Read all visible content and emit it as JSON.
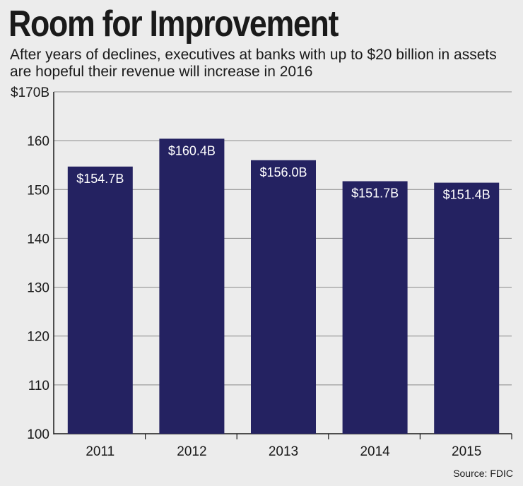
{
  "header": {
    "title": "Room for Improvement",
    "subtitle": "After years of declines, executives at banks with up to $20 billion in assets are hopeful their revenue will increase in 2016"
  },
  "footer": {
    "source": "Source: FDIC"
  },
  "chart_data": {
    "type": "bar",
    "categories": [
      "2011",
      "2012",
      "2013",
      "2014",
      "2015"
    ],
    "values": [
      154.7,
      160.4,
      156.0,
      151.7,
      151.4
    ],
    "value_labels": [
      "$154.7B",
      "$160.4B",
      "$156.0B",
      "$151.7B",
      "$151.4B"
    ],
    "ylim": [
      100,
      170
    ],
    "yticks": [
      100,
      110,
      120,
      130,
      140,
      150,
      160,
      170
    ],
    "ytick_labels": [
      "100",
      "110",
      "120",
      "130",
      "140",
      "150",
      "160",
      "$170B"
    ],
    "grid": true,
    "legend": "none",
    "colors": {
      "bar": "#242261",
      "grid": "#8a8a8a",
      "background": "#ececec"
    }
  }
}
